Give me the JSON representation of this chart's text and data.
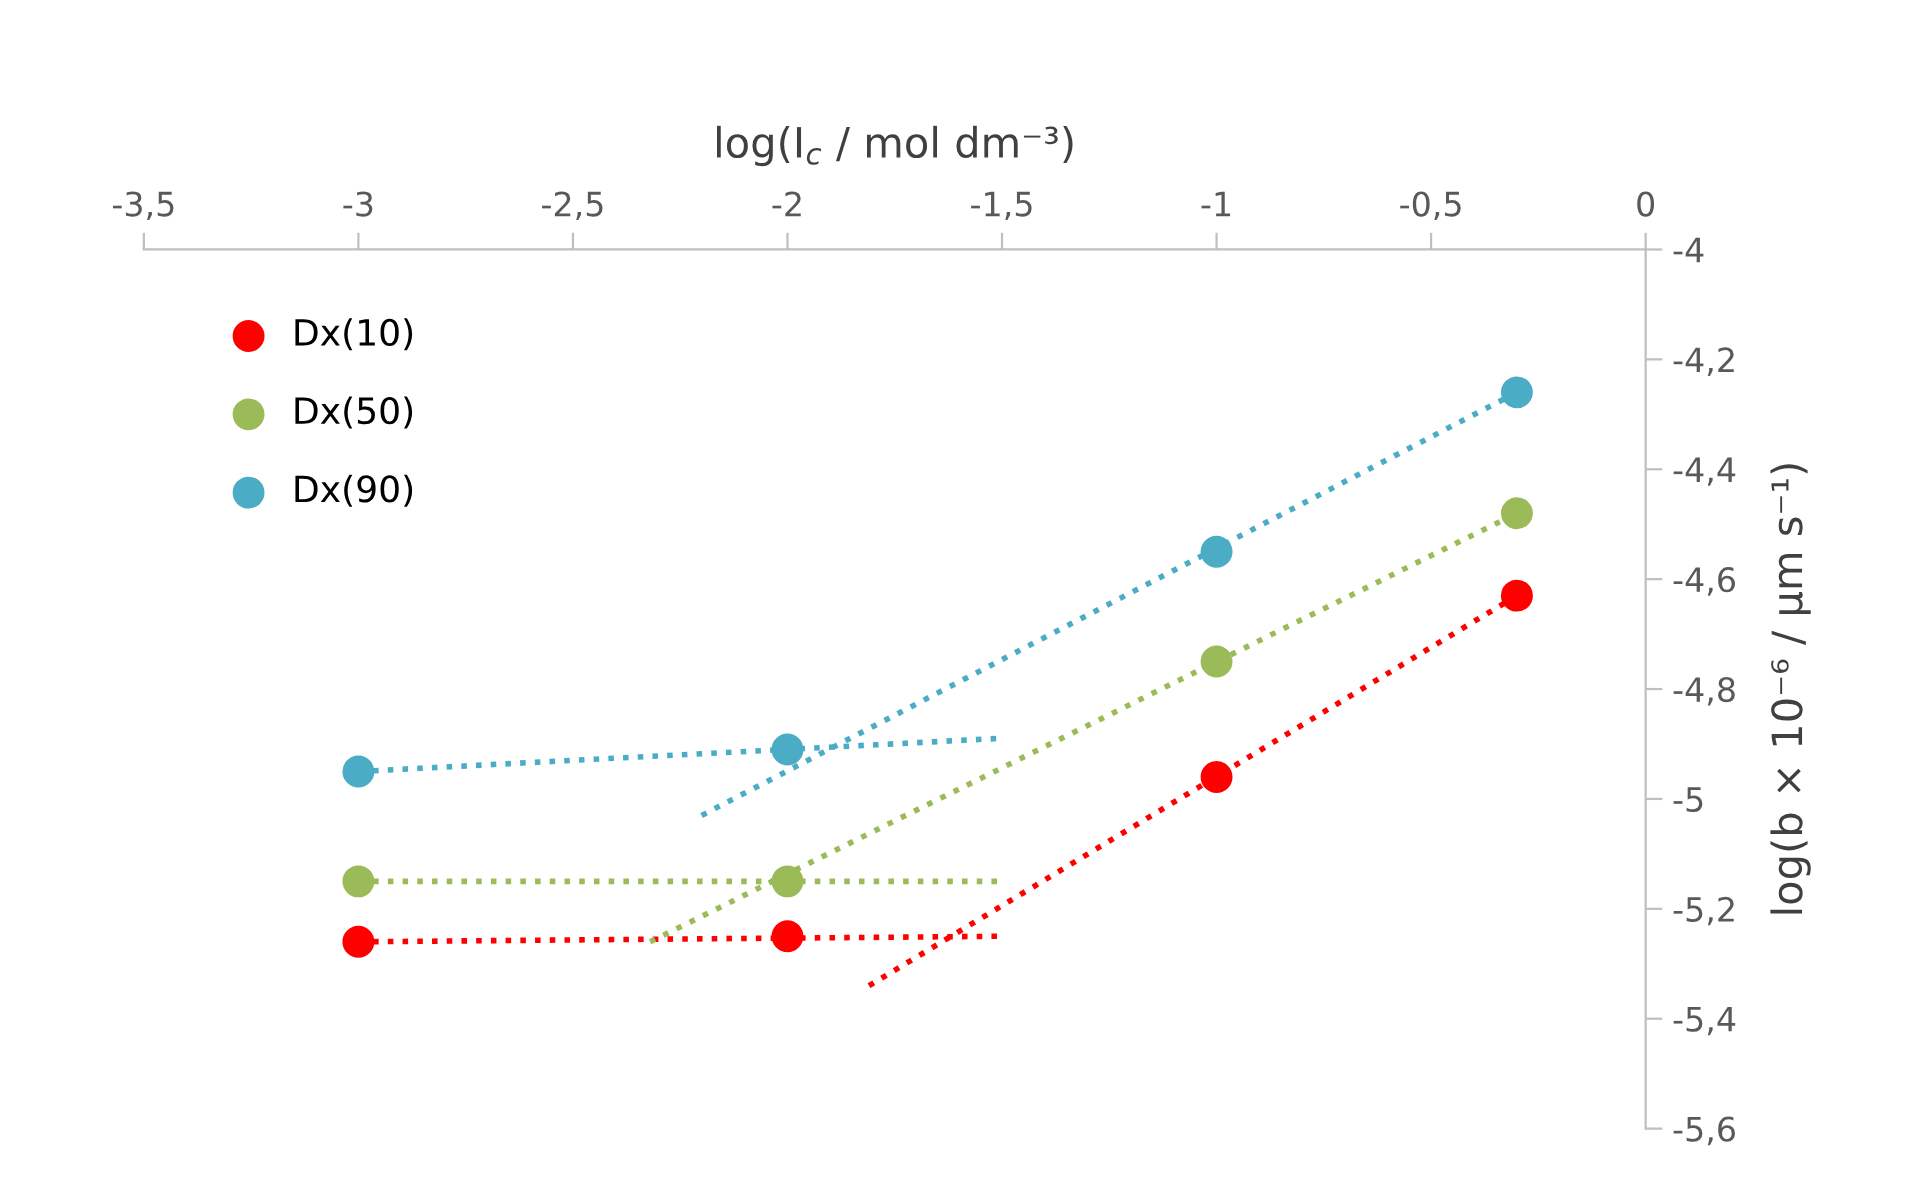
{
  "chart_data": {
    "type": "scatter",
    "xlabel": "log(I$_{c}$ / mol dm⁻³)",
    "ylabel": "log(b × 10⁻⁶ / µm s⁻¹)",
    "xlim": [
      -3.5,
      0
    ],
    "ylim": [
      -5.6,
      -4
    ],
    "xticks": [
      {
        "value": -3.5,
        "label": "-3,5"
      },
      {
        "value": -3,
        "label": "-3"
      },
      {
        "value": -2.5,
        "label": "-2,5"
      },
      {
        "value": -2,
        "label": "-2"
      },
      {
        "value": -1.5,
        "label": "-1,5"
      },
      {
        "value": -1,
        "label": "-1"
      },
      {
        "value": -0.5,
        "label": "-0,5"
      },
      {
        "value": 0,
        "label": "0"
      }
    ],
    "yticks": [
      {
        "value": -4,
        "label": "-4"
      },
      {
        "value": -4.2,
        "label": "-4,2"
      },
      {
        "value": -4.4,
        "label": "-4,4"
      },
      {
        "value": -4.6,
        "label": "-4,6"
      },
      {
        "value": -4.8,
        "label": "-4,8"
      },
      {
        "value": -5,
        "label": "-5"
      },
      {
        "value": -5.2,
        "label": "-5,2"
      },
      {
        "value": -5.4,
        "label": "-5,4"
      },
      {
        "value": -5.6,
        "label": "-5,6"
      }
    ],
    "grid": false,
    "legend": "top left",
    "series": [
      {
        "name": "Dx(10)",
        "marker": "circle",
        "color": "#ff0000",
        "x": [
          -3,
          -2,
          -1,
          -0.3
        ],
        "values": [
          -5.26,
          -5.25,
          -4.96,
          -4.63
        ]
      },
      {
        "name": "Dx(50)",
        "marker": "circle",
        "color": "#9bbb59",
        "x": [
          -3,
          -2,
          -1,
          -0.3
        ],
        "values": [
          -5.15,
          -5.15,
          -4.75,
          -4.48
        ]
      },
      {
        "name": "Dx(90)",
        "marker": "circle",
        "color": "#4bacc6",
        "x": [
          -3,
          -2,
          -1,
          -0.3
        ],
        "values": [
          -4.95,
          -4.91,
          -4.55,
          -4.26
        ]
      },
      {
        "type": "line",
        "line_style": "dotted",
        "color": "#ff0000",
        "x": [
          -3,
          -1.51
        ],
        "values": [
          -5.26,
          -5.25
        ]
      },
      {
        "type": "line",
        "line_style": "dotted",
        "color": "#ff0000",
        "x": [
          -1.81,
          -0.3
        ],
        "values": [
          -5.34,
          -4.63
        ]
      },
      {
        "type": "line",
        "line_style": "dotted",
        "color": "#9bbb59",
        "x": [
          -3,
          -1.51
        ],
        "values": [
          -5.15,
          -5.15
        ]
      },
      {
        "type": "line",
        "line_style": "dotted",
        "color": "#9bbb59",
        "x": [
          -2.32,
          -0.3
        ],
        "values": [
          -5.26,
          -4.48
        ]
      },
      {
        "type": "line",
        "line_style": "dotted",
        "color": "#4bacc6",
        "x": [
          -3,
          -1.51
        ],
        "values": [
          -4.95,
          -4.89
        ]
      },
      {
        "type": "line",
        "line_style": "dotted",
        "color": "#4bacc6",
        "x": [
          -2.2,
          -0.3
        ],
        "values": [
          -5.03,
          -4.26
        ]
      }
    ]
  }
}
